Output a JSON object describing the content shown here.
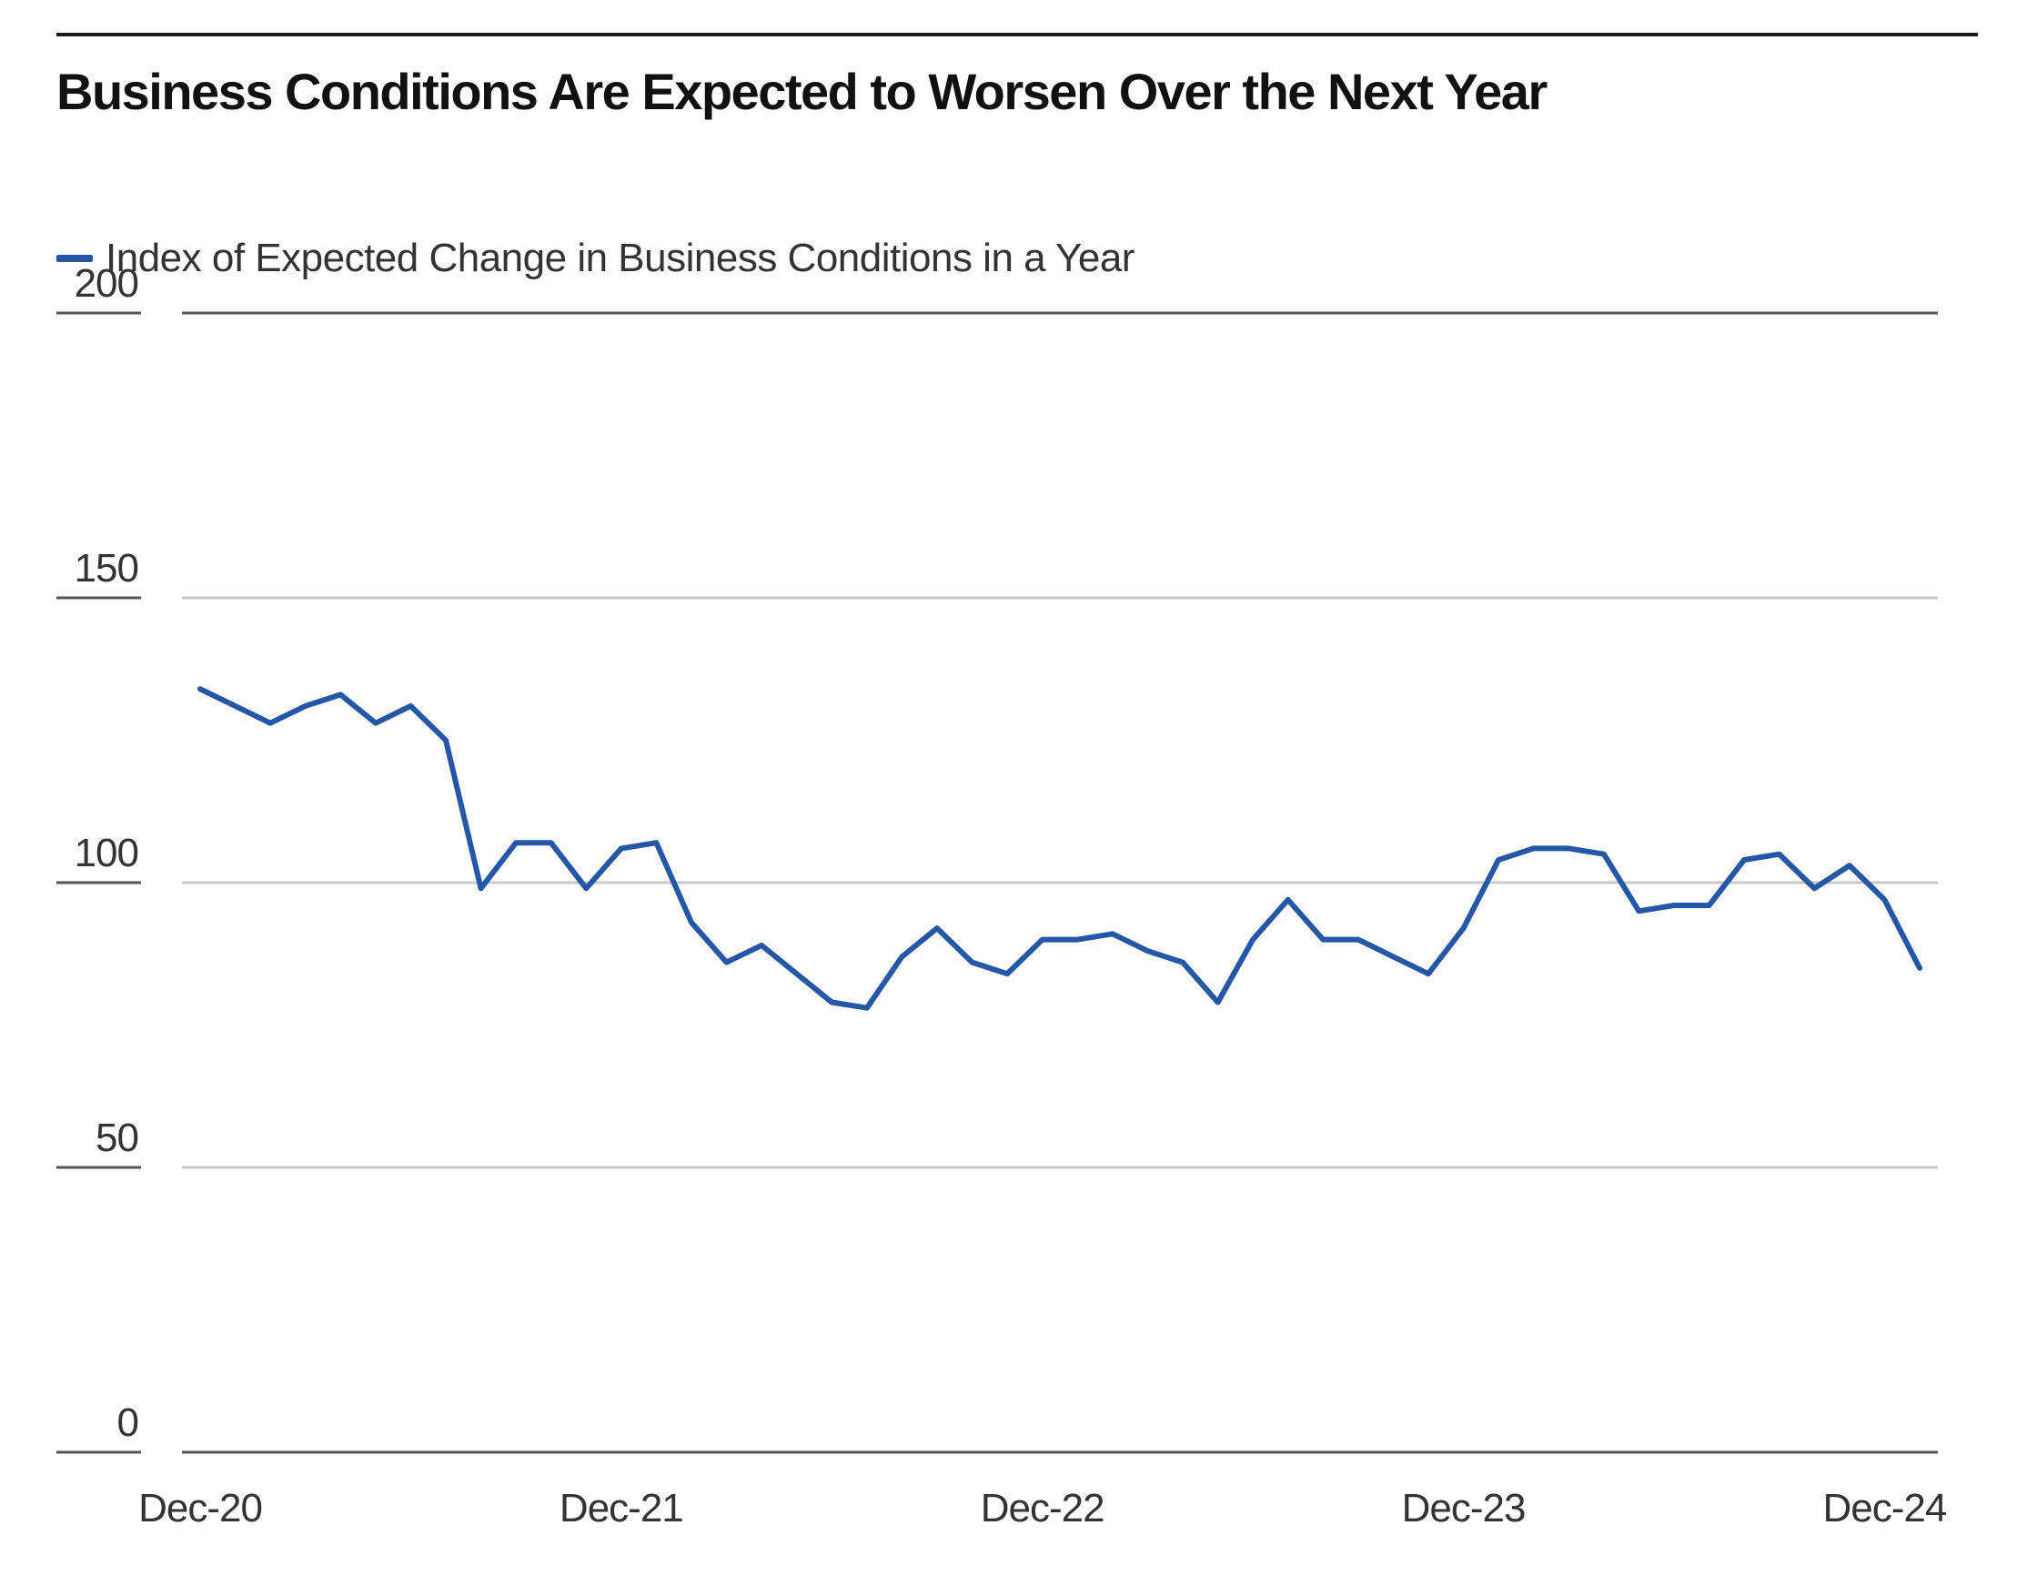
{
  "chart_data": {
    "type": "line",
    "title": "Business Conditions Are Expected to Worsen Over the Next Year",
    "xlabel": "",
    "ylabel": "",
    "ylim": [
      0,
      200
    ],
    "yticks": [
      "0",
      "50",
      "100",
      "150",
      "200"
    ],
    "xticks": [
      {
        "label": "Dec-20",
        "index": 0
      },
      {
        "label": "Dec-21",
        "index": 12
      },
      {
        "label": "Dec-22",
        "index": 24
      },
      {
        "label": "Dec-23",
        "index": 36
      },
      {
        "label": "Dec-24",
        "index": 48
      }
    ],
    "grid": true,
    "legend_position": "top-left",
    "colors": {
      "series": "#2457a6",
      "gridline": "#c8c8c8",
      "axis_rule": "#555555",
      "top_rule": "#1a1a1a"
    },
    "series": [
      {
        "name": "Index of Expected Change in Business Conditions in a Year",
        "values": [
          134,
          131,
          128,
          131,
          133,
          128,
          131,
          125,
          99,
          107,
          107,
          99,
          106,
          107,
          93,
          86,
          89,
          84,
          79,
          78,
          87,
          92,
          86,
          84,
          90,
          90,
          91,
          88,
          86,
          79,
          90,
          97,
          90,
          90,
          87,
          84,
          92,
          104,
          106,
          106,
          105,
          95,
          96,
          96,
          104,
          105,
          99,
          103,
          97,
          85
        ]
      }
    ]
  }
}
